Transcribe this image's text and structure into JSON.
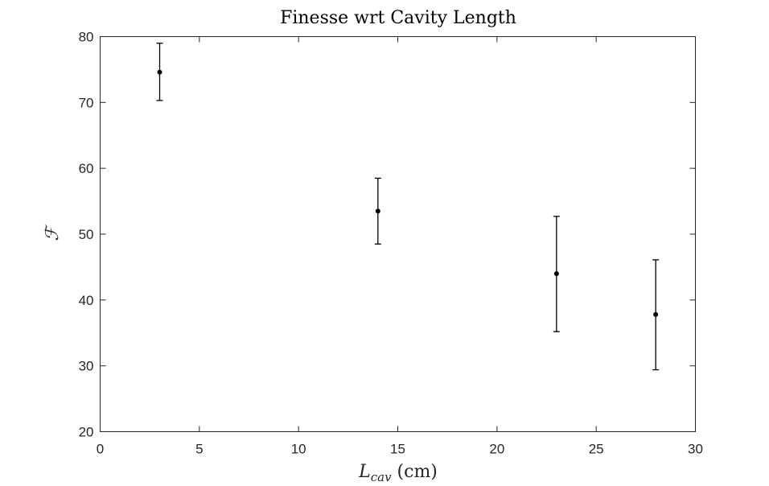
{
  "chart_data": {
    "type": "scatter",
    "title": "Finesse wrt Cavity Length",
    "xlabel": {
      "symbol": "L",
      "subscript": "cav",
      "unit": " (cm)"
    },
    "ylabel": "ℱ",
    "xlim": [
      0,
      30
    ],
    "ylim": [
      20,
      80
    ],
    "xticks": [
      0,
      5,
      10,
      15,
      20,
      25,
      30
    ],
    "yticks": [
      20,
      30,
      40,
      50,
      60,
      70,
      80
    ],
    "grid": false,
    "box": true,
    "series": [
      {
        "x": [
          3,
          14,
          23,
          28
        ],
        "y": [
          74.6,
          53.5,
          44.0,
          37.8
        ],
        "error_low": [
          4.3,
          5.0,
          8.8,
          8.4
        ],
        "error_high": [
          4.4,
          5.0,
          8.7,
          8.3
        ],
        "marker": "dot",
        "color": "#000000"
      }
    ]
  }
}
